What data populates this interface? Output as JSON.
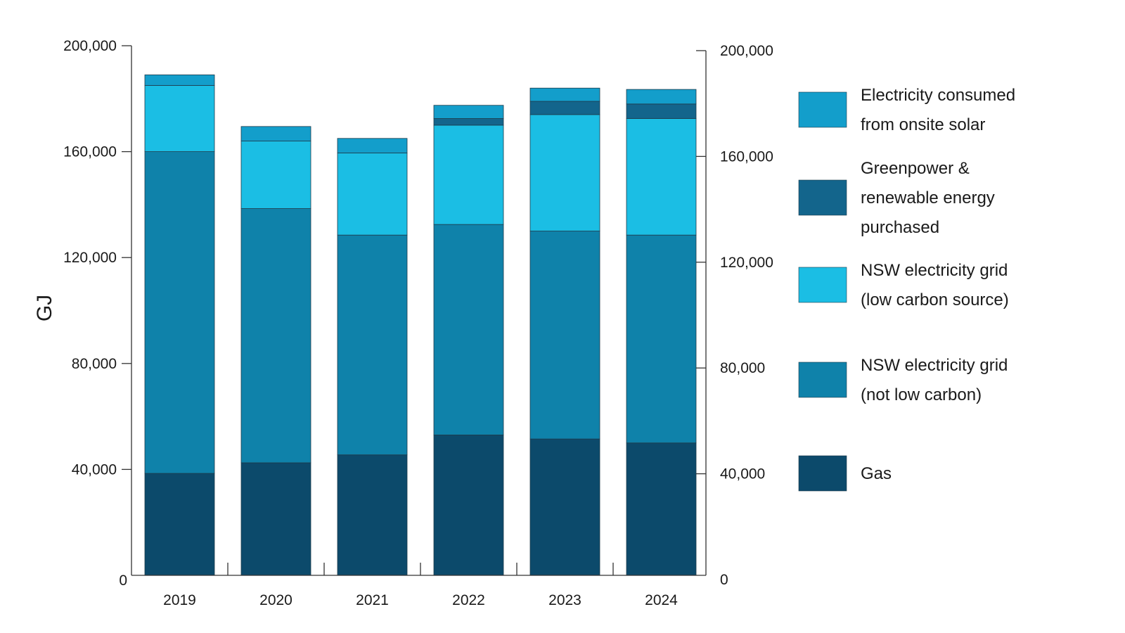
{
  "chart_data": {
    "type": "bar",
    "stacked": true,
    "title": "",
    "xlabel": "",
    "ylabel": "GJ",
    "ylim": [
      0,
      200000
    ],
    "yticks": [
      0,
      40000,
      80000,
      120000,
      160000,
      200000
    ],
    "ytick_labels": [
      "0",
      "40,000",
      "80,000",
      "120,000",
      "160,000",
      "200,000"
    ],
    "right_axis": true,
    "grid": false,
    "legend_position": "right",
    "categories": [
      "2019",
      "2020",
      "2021",
      "2022",
      "2023",
      "2024"
    ],
    "series": [
      {
        "name": "Gas",
        "label_lines": [
          "Gas"
        ],
        "color": "#0c4a6b",
        "values": [
          38500,
          42500,
          45500,
          53000,
          51500,
          50000
        ]
      },
      {
        "name": "NSW electricity grid (not low carbon)",
        "label_lines": [
          "NSW electricity grid",
          "(not low carbon)"
        ],
        "color": "#0f82aa",
        "values": [
          121500,
          96000,
          83000,
          79500,
          78500,
          78500
        ]
      },
      {
        "name": "NSW electricity grid (low carbon source)",
        "label_lines": [
          "NSW electricity grid",
          "(low carbon source)"
        ],
        "color": "#1bbee4",
        "values": [
          25000,
          25500,
          31000,
          37500,
          44000,
          44000
        ]
      },
      {
        "name": "Greenpower & renewable energy purchased",
        "label_lines": [
          "Greenpower &",
          "renewable energy",
          "purchased"
        ],
        "color": "#13658c",
        "values": [
          0,
          0,
          0,
          2500,
          5000,
          5500
        ]
      },
      {
        "name": "Electricity consumed from onsite solar",
        "label_lines": [
          "Electricity consumed",
          "from onsite solar"
        ],
        "color": "#139ecb",
        "values": [
          4000,
          5500,
          5500,
          5000,
          5000,
          5500
        ]
      }
    ],
    "legend_order": [
      4,
      3,
      2,
      1,
      0
    ]
  }
}
